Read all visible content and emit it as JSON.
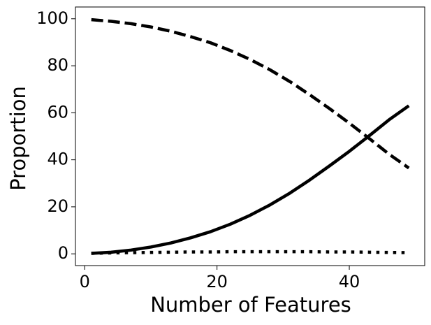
{
  "chart_data": {
    "type": "line",
    "xlabel": "Number of Features",
    "ylabel": "Proportion",
    "x": [
      1,
      4,
      7,
      10,
      13,
      16,
      19,
      22,
      25,
      28,
      31,
      34,
      37,
      40,
      43,
      46,
      49
    ],
    "series": [
      {
        "color": "#000000",
        "linestyle": "solid",
        "values": [
          0.2,
          0.7,
          1.6,
          2.9,
          4.6,
          6.8,
          9.4,
          12.6,
          16.4,
          20.8,
          25.8,
          31.4,
          37.4,
          43.6,
          50.2,
          57.0,
          63.0
        ]
      },
      {
        "color": "#000000",
        "linestyle": "dashed",
        "values": [
          99.6,
          98.9,
          97.9,
          96.5,
          94.7,
          92.4,
          89.8,
          86.5,
          82.7,
          78.3,
          73.3,
          67.7,
          61.8,
          55.6,
          49.1,
          42.4,
          36.5
        ]
      },
      {
        "color": "#000000",
        "linestyle": "dotted",
        "values": [
          0.2,
          0.4,
          0.5,
          0.6,
          0.7,
          0.8,
          0.8,
          0.9,
          0.9,
          0.9,
          0.9,
          0.9,
          0.8,
          0.8,
          0.7,
          0.6,
          0.5
        ]
      }
    ],
    "xlim": [
      -1.4,
      51.4
    ],
    "xticks": [
      0,
      20,
      40
    ],
    "ylim": [
      -5,
      105
    ],
    "yticks": [
      0,
      20,
      40,
      60,
      80,
      100
    ],
    "grid": false
  }
}
